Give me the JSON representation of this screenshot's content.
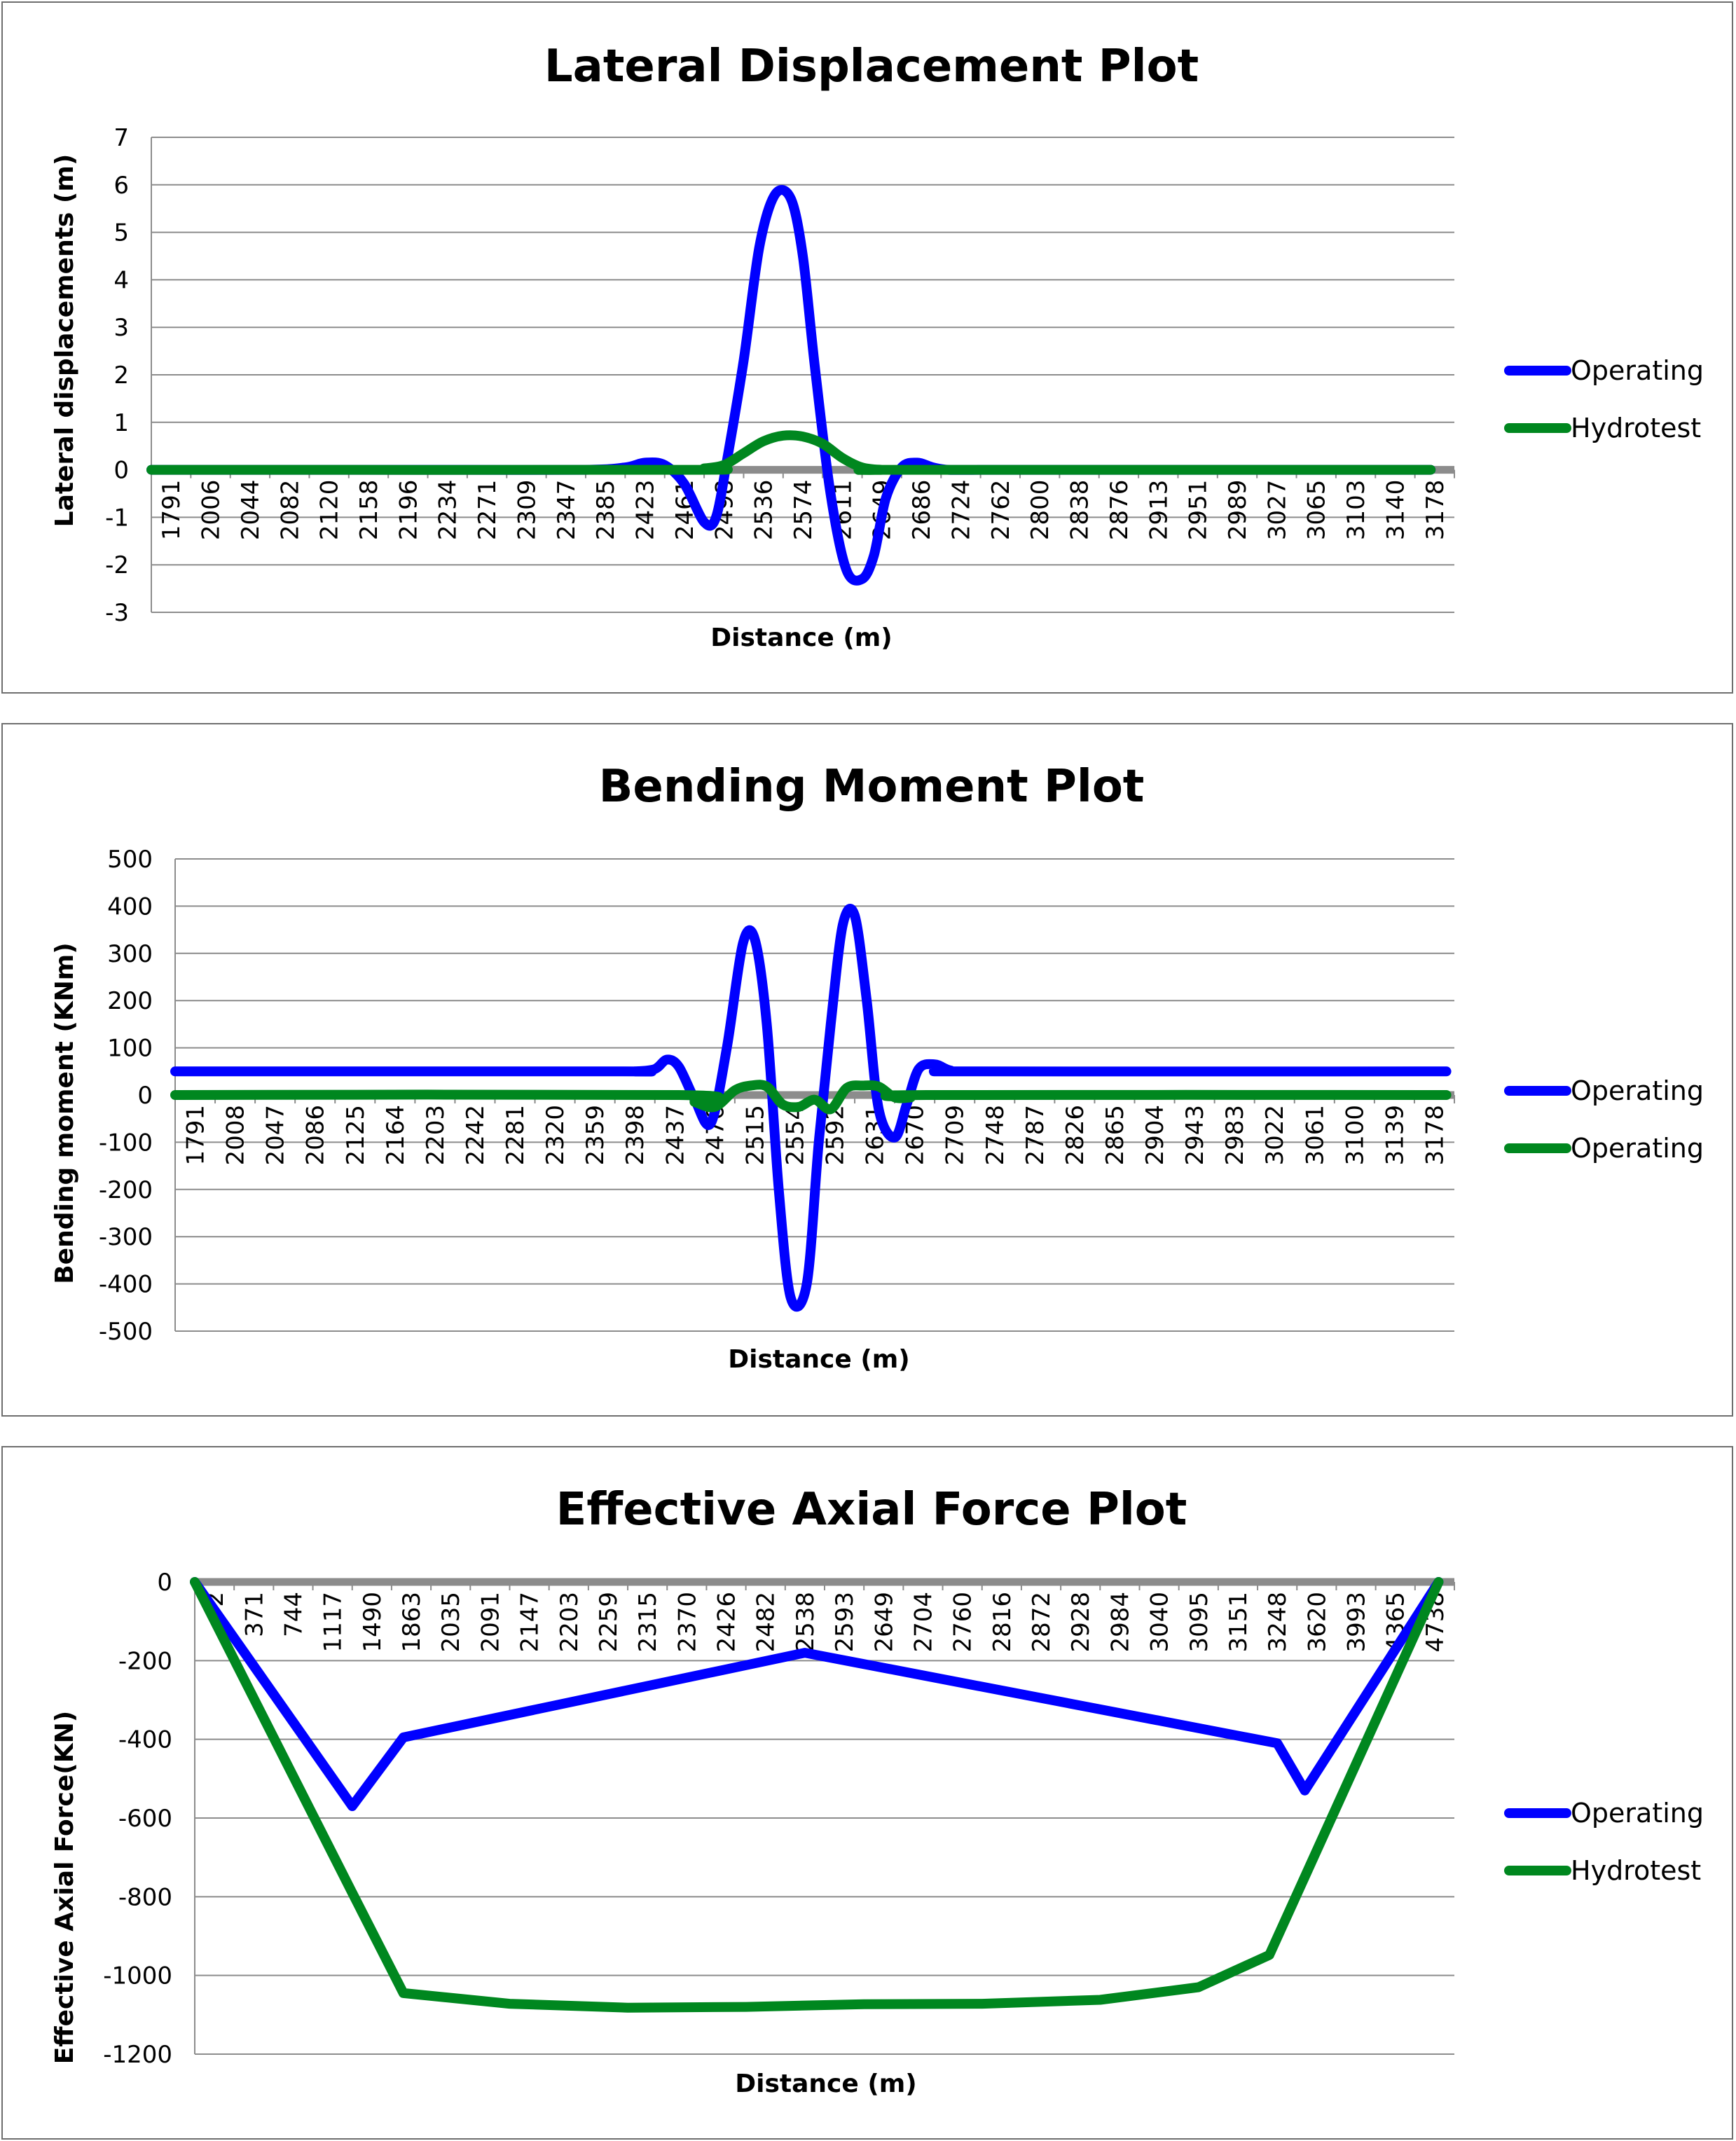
{
  "chart_data": [
    {
      "type": "line",
      "title": "Lateral Displacement Plot",
      "xlabel": "Distance (m)",
      "ylabel": "Lateral displacements (m)",
      "ylim": [
        -3,
        7
      ],
      "ystep": 1,
      "grid": true,
      "legend_position": "right",
      "x_tick_labels": [
        "1791",
        "2006",
        "2044",
        "2082",
        "2120",
        "2158",
        "2196",
        "2234",
        "2271",
        "2309",
        "2347",
        "2385",
        "2423",
        "2461",
        "2498",
        "2536",
        "2574",
        "2611",
        "2649",
        "2686",
        "2724",
        "2762",
        "2800",
        "2838",
        "2876",
        "2913",
        "2951",
        "2989",
        "3027",
        "3065",
        "3103",
        "3140",
        "3178"
      ],
      "series": [
        {
          "name": "Operating",
          "color": "#0000ff",
          "x": [
            0,
            5,
            8,
            11,
            12,
            12.5,
            13,
            13.5,
            14,
            14.3,
            14.6,
            15,
            15.4,
            15.8,
            16.2,
            16.5,
            16.8,
            17.2,
            17.6,
            18,
            18.3,
            18.6,
            19,
            19.4,
            19.8,
            20.2,
            21,
            22,
            32.4
          ],
          "values": [
            0,
            0,
            0,
            0,
            0.05,
            0.15,
            0.1,
            -0.3,
            -1.1,
            -1.0,
            0.3,
            2.3,
            4.7,
            5.8,
            5.7,
            4.5,
            2.2,
            -0.5,
            -2.1,
            -2.3,
            -1.8,
            -0.6,
            0.05,
            0.15,
            0.05,
            0,
            0,
            0,
            0
          ]
        },
        {
          "name": "Hydrotest",
          "color": "#00871f",
          "x": [
            0,
            13.5,
            14,
            14.5,
            15,
            15.5,
            16,
            16.5,
            17,
            17.5,
            18,
            18.5,
            19,
            32.4
          ],
          "values": [
            0,
            0,
            0.03,
            0.1,
            0.35,
            0.6,
            0.72,
            0.7,
            0.55,
            0.25,
            0.05,
            0,
            0,
            0
          ]
        }
      ]
    },
    {
      "type": "line",
      "title": "Bending Moment Plot",
      "xlabel": "Distance (m)",
      "ylabel": "Bending moment (KNm)",
      "ylim": [
        -500,
        500
      ],
      "ystep": 100,
      "grid": true,
      "legend_position": "right",
      "x_tick_labels": [
        "1791",
        "2008",
        "2047",
        "2086",
        "2125",
        "2164",
        "2203",
        "2242",
        "2281",
        "2320",
        "2359",
        "2398",
        "2437",
        "2476",
        "2515",
        "2554",
        "2592",
        "2631",
        "2670",
        "2709",
        "2748",
        "2787",
        "2826",
        "2865",
        "2904",
        "2943",
        "2983",
        "3022",
        "3061",
        "3100",
        "3139",
        "3178"
      ],
      "series": [
        {
          "name": "Operating",
          "color": "#0000ff",
          "x": [
            0,
            11,
            11.5,
            12,
            12.3,
            12.6,
            13,
            13.4,
            13.8,
            14.2,
            14.5,
            14.8,
            15.1,
            15.4,
            15.8,
            16.1,
            16.4,
            16.7,
            17,
            17.3,
            17.6,
            18,
            18.3,
            18.6,
            19,
            19.4,
            20,
            31.8
          ],
          "values": [
            50,
            50,
            50,
            55,
            75,
            60,
            -10,
            -60,
            100,
            320,
            330,
            150,
            -200,
            -430,
            -400,
            -100,
            150,
            360,
            380,
            200,
            -30,
            -90,
            -20,
            55,
            65,
            52,
            50,
            50
          ]
        },
        {
          "name": "Operating",
          "color": "#00871f",
          "x": [
            0,
            12.6,
            13,
            13.5,
            14,
            14.4,
            14.8,
            15.2,
            15.6,
            16,
            16.4,
            16.8,
            17.2,
            17.6,
            18,
            18.4,
            18.8,
            31.8
          ],
          "values": [
            0,
            0,
            -15,
            -25,
            10,
            20,
            18,
            -20,
            -25,
            -10,
            -30,
            15,
            20,
            18,
            -5,
            -5,
            0,
            0
          ]
        }
      ]
    },
    {
      "type": "line",
      "title": "Effective Axial Force Plot",
      "xlabel": "Distance (m)",
      "ylabel": "Effective Axial Force(KN)",
      "ylim": [
        -1200,
        0
      ],
      "ystep": 200,
      "grid": true,
      "legend_position": "right",
      "x_tick_labels": [
        "-2",
        "371",
        "744",
        "1117",
        "1490",
        "1863",
        "2035",
        "2091",
        "2147",
        "2203",
        "2259",
        "2315",
        "2370",
        "2426",
        "2482",
        "2538",
        "2593",
        "2649",
        "2704",
        "2760",
        "2816",
        "2872",
        "2928",
        "2984",
        "3040",
        "3095",
        "3151",
        "3248",
        "3620",
        "3993",
        "4365",
        "4738"
      ],
      "series": [
        {
          "name": "Operating",
          "color": "#0000ff",
          "x": [
            0,
            4,
            5.3,
            15.5,
            27.5,
            28.2,
            31.6
          ],
          "values": [
            0,
            -570,
            -395,
            -180,
            -410,
            -530,
            0
          ]
        },
        {
          "name": "Hydrotest",
          "color": "#00871f",
          "x": [
            0,
            4,
            5.3,
            8,
            11,
            14,
            17,
            20,
            23,
            25.5,
            27.3,
            31.6
          ],
          "values": [
            0,
            -790,
            -1045,
            -1072,
            -1082,
            -1080,
            -1073,
            -1072,
            -1062,
            -1030,
            -948,
            0
          ]
        }
      ]
    }
  ]
}
